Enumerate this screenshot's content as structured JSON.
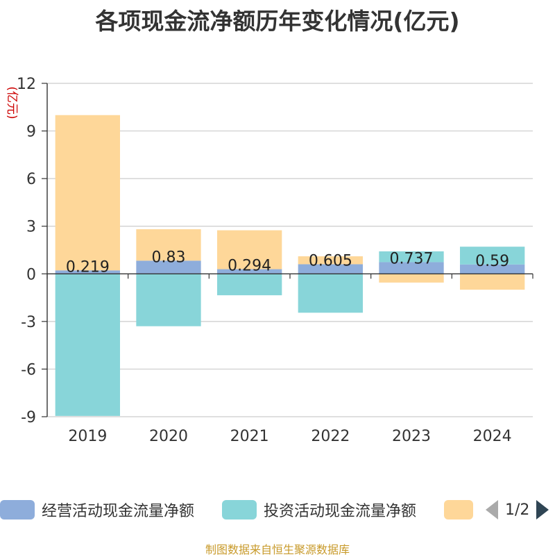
{
  "chart_data": {
    "type": "bar",
    "stacked": true,
    "title": "各项现金流净额历年变化情况(亿元)",
    "ylabel": "(亿元)",
    "xlabel": "",
    "categories": [
      "2019",
      "2020",
      "2021",
      "2022",
      "2023",
      "2024"
    ],
    "ylim": [
      -9,
      12
    ],
    "yticks": [
      12,
      9,
      6,
      3,
      0,
      -3,
      -6,
      -9
    ],
    "grid": true,
    "series": [
      {
        "name": "经营活动现金流量净额",
        "color": "#8eaddb",
        "values": [
          0.219,
          0.83,
          0.294,
          0.605,
          0.737,
          0.59
        ],
        "labels": [
          "0.219",
          "0.83",
          "0.294",
          "0.605",
          "0.737",
          "0.59"
        ]
      },
      {
        "name": "投资活动现金流量净额",
        "color": "#88d5d9",
        "values": [
          -8.95,
          -3.3,
          -1.35,
          -2.45,
          0.68,
          1.12
        ]
      },
      {
        "name": "",
        "color": "#fed799",
        "values": [
          9.78,
          1.98,
          2.45,
          0.5,
          -0.55,
          -1.0
        ]
      }
    ]
  },
  "legend": {
    "items": [
      {
        "label": "经营活动现金流量净额",
        "color": "#8eaddb"
      },
      {
        "label": "投资活动现金流量净额",
        "color": "#88d5d9"
      },
      {
        "label": "",
        "color": "#fed799"
      }
    ],
    "page_text": "1/2"
  },
  "source_note": "制图数据来自恒生聚源数据库"
}
